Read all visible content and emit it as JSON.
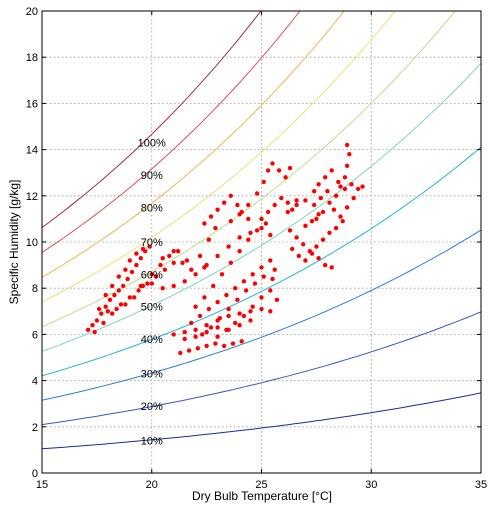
{
  "chart_data": {
    "type": "scatter",
    "xlabel": "Dry Bulb Temperature [°C]",
    "ylabel": "Specific Humidity [g/kg]",
    "xlim": [
      15,
      35
    ],
    "ylim": [
      0,
      20
    ],
    "x_ticks": [
      15,
      20,
      25,
      30,
      35
    ],
    "y_ticks": [
      0,
      2,
      4,
      6,
      8,
      10,
      12,
      14,
      16,
      18,
      20
    ],
    "grid": true,
    "pressure_kpa": 101.325,
    "rh_curves": [
      {
        "rh": 10,
        "label": "10%",
        "label_at": [
          20,
          1.4
        ],
        "color": "#1c2aa0"
      },
      {
        "rh": 20,
        "label": "20%",
        "label_at": [
          20,
          2.9
        ],
        "color": "#3f55c7"
      },
      {
        "rh": 30,
        "label": "30%",
        "label_at": [
          20,
          4.3
        ],
        "color": "#2f7bdc"
      },
      {
        "rh": 40,
        "label": "40%",
        "label_at": [
          20,
          5.8
        ],
        "color": "#22b5d8"
      },
      {
        "rh": 50,
        "label": "50%",
        "label_at": [
          20,
          7.2
        ],
        "color": "#7fd6c2"
      },
      {
        "rh": 60,
        "label": "60%",
        "label_at": [
          20,
          8.6
        ],
        "color": "#b9e08a"
      },
      {
        "rh": 70,
        "label": "70%",
        "label_at": [
          20,
          10.0
        ],
        "color": "#f0e070"
      },
      {
        "rh": 80,
        "label": "80%",
        "label_at": [
          20,
          11.5
        ],
        "color": "#f2b84a"
      },
      {
        "rh": 90,
        "label": "90%",
        "label_at": [
          20,
          12.9
        ],
        "color": "#d9534f"
      },
      {
        "rh": 100,
        "label": "100%",
        "label_at": [
          20,
          14.3
        ],
        "color": "#a0303a"
      }
    ],
    "series": [
      {
        "color": "#ff0000",
        "points": [
          [
            17.1,
            6.2
          ],
          [
            17.3,
            6.4
          ],
          [
            17.5,
            6.6
          ],
          [
            17.7,
            6.9
          ],
          [
            17.9,
            7.2
          ],
          [
            18.1,
            7.5
          ],
          [
            18.3,
            7.7
          ],
          [
            18.5,
            7.9
          ],
          [
            18.7,
            8.1
          ],
          [
            18.9,
            8.4
          ],
          [
            19.1,
            8.7
          ],
          [
            19.3,
            9.0
          ],
          [
            19.5,
            9.3
          ],
          [
            19.7,
            9.6
          ],
          [
            19.9,
            9.8
          ],
          [
            17.4,
            6.1
          ],
          [
            17.8,
            6.5
          ],
          [
            18.2,
            6.9
          ],
          [
            18.6,
            7.3
          ],
          [
            19.0,
            7.6
          ],
          [
            19.4,
            7.9
          ],
          [
            19.8,
            8.2
          ],
          [
            20.2,
            8.5
          ],
          [
            20.6,
            8.8
          ],
          [
            21.0,
            9.1
          ],
          [
            18.0,
            7.0
          ],
          [
            18.4,
            7.1
          ],
          [
            18.8,
            7.3
          ],
          [
            19.2,
            7.6
          ],
          [
            19.6,
            8.1
          ],
          [
            20.0,
            8.6
          ],
          [
            20.4,
            9.0
          ],
          [
            20.8,
            9.4
          ],
          [
            21.2,
            9.6
          ],
          [
            21.6,
            9.2
          ],
          [
            19.5,
            8.1
          ],
          [
            20.0,
            8.2
          ],
          [
            20.5,
            8.0
          ],
          [
            21.0,
            8.1
          ],
          [
            21.5,
            8.3
          ],
          [
            22.0,
            8.6
          ],
          [
            22.4,
            8.9
          ],
          [
            20.5,
            9.3
          ],
          [
            21.0,
            9.6
          ],
          [
            21.4,
            9.1
          ],
          [
            21.8,
            8.8
          ],
          [
            22.2,
            9.4
          ],
          [
            22.6,
            10.1
          ],
          [
            22.9,
            10.6
          ],
          [
            22.4,
            10.8
          ],
          [
            22.7,
            11.1
          ],
          [
            23.0,
            11.4
          ],
          [
            23.3,
            11.7
          ],
          [
            23.6,
            12.0
          ],
          [
            23.9,
            11.6
          ],
          [
            24.1,
            11.3
          ],
          [
            24.4,
            11.0
          ],
          [
            21.3,
            5.2
          ],
          [
            21.7,
            5.3
          ],
          [
            22.1,
            5.4
          ],
          [
            22.5,
            5.5
          ],
          [
            22.9,
            5.6
          ],
          [
            23.3,
            5.5
          ],
          [
            23.7,
            5.6
          ],
          [
            24.1,
            5.7
          ],
          [
            21.0,
            6.0
          ],
          [
            21.5,
            6.1
          ],
          [
            22.0,
            6.2
          ],
          [
            22.5,
            6.4
          ],
          [
            23.0,
            6.6
          ],
          [
            23.5,
            6.8
          ],
          [
            24.0,
            6.9
          ],
          [
            24.5,
            7.0
          ],
          [
            25.0,
            7.1
          ],
          [
            25.4,
            7.0
          ],
          [
            21.8,
            6.5
          ],
          [
            22.2,
            6.8
          ],
          [
            22.6,
            7.1
          ],
          [
            23.0,
            7.4
          ],
          [
            23.4,
            7.7
          ],
          [
            23.8,
            8.0
          ],
          [
            24.2,
            8.3
          ],
          [
            24.6,
            8.6
          ],
          [
            25.0,
            8.9
          ],
          [
            25.4,
            9.2
          ],
          [
            25.6,
            8.8
          ],
          [
            22.0,
            7.2
          ],
          [
            22.4,
            7.6
          ],
          [
            22.8,
            8.1
          ],
          [
            23.2,
            8.6
          ],
          [
            23.6,
            9.1
          ],
          [
            24.0,
            9.6
          ],
          [
            24.4,
            10.1
          ],
          [
            24.8,
            10.5
          ],
          [
            25.2,
            10.8
          ],
          [
            22.3,
            6.0
          ],
          [
            22.7,
            6.3
          ],
          [
            23.1,
            6.7
          ],
          [
            23.5,
            7.1
          ],
          [
            23.9,
            7.5
          ],
          [
            24.3,
            7.9
          ],
          [
            24.7,
            8.2
          ],
          [
            25.1,
            8.5
          ],
          [
            25.5,
            8.4
          ],
          [
            23.0,
            5.9
          ],
          [
            23.4,
            6.2
          ],
          [
            23.8,
            6.5
          ],
          [
            24.2,
            6.8
          ],
          [
            24.6,
            7.2
          ],
          [
            25.0,
            7.6
          ],
          [
            25.4,
            7.9
          ],
          [
            25.7,
            7.5
          ],
          [
            22.5,
            9.0
          ],
          [
            23.0,
            9.4
          ],
          [
            23.5,
            9.8
          ],
          [
            24.0,
            10.2
          ],
          [
            24.5,
            10.4
          ],
          [
            25.0,
            10.6
          ],
          [
            25.4,
            10.3
          ],
          [
            23.6,
            10.9
          ],
          [
            24.0,
            11.2
          ],
          [
            24.4,
            11.6
          ],
          [
            24.8,
            12.1
          ],
          [
            25.1,
            12.6
          ],
          [
            25.3,
            13.1
          ],
          [
            25.5,
            13.4
          ],
          [
            25.8,
            13.1
          ],
          [
            26.1,
            12.8
          ],
          [
            26.3,
            13.2
          ],
          [
            25.0,
            11.0
          ],
          [
            25.3,
            11.3
          ],
          [
            25.6,
            11.6
          ],
          [
            25.9,
            11.9
          ],
          [
            26.2,
            11.7
          ],
          [
            26.4,
            11.4
          ],
          [
            26.6,
            11.8
          ],
          [
            26.2,
            11.3
          ],
          [
            26.6,
            11.6
          ],
          [
            27.0,
            11.8
          ],
          [
            27.4,
            11.6
          ],
          [
            27.6,
            11.2
          ],
          [
            27.3,
            10.9
          ],
          [
            27.0,
            10.7
          ],
          [
            26.3,
            10.5
          ],
          [
            26.6,
            10.2
          ],
          [
            26.9,
            9.9
          ],
          [
            27.2,
            9.6
          ],
          [
            27.5,
            9.8
          ],
          [
            27.8,
            10.1
          ],
          [
            28.1,
            10.4
          ],
          [
            28.4,
            10.6
          ],
          [
            28.7,
            10.9
          ],
          [
            26.4,
            9.7
          ],
          [
            26.7,
            9.4
          ],
          [
            27.0,
            9.2
          ],
          [
            27.3,
            9.5
          ],
          [
            27.6,
            9.3
          ],
          [
            27.9,
            9.0
          ],
          [
            28.2,
            8.9
          ],
          [
            27.5,
            11.0
          ],
          [
            27.8,
            11.3
          ],
          [
            28.1,
            11.7
          ],
          [
            28.4,
            12.0
          ],
          [
            28.6,
            12.4
          ],
          [
            28.8,
            12.8
          ],
          [
            28.9,
            13.3
          ],
          [
            29.0,
            13.8
          ],
          [
            28.9,
            14.2
          ],
          [
            27.6,
            12.5
          ],
          [
            27.9,
            12.8
          ],
          [
            28.2,
            13.1
          ],
          [
            28.5,
            12.6
          ],
          [
            28.8,
            12.3
          ],
          [
            29.1,
            12.5
          ],
          [
            29.4,
            12.3
          ],
          [
            29.6,
            12.4
          ],
          [
            27.4,
            12.2
          ],
          [
            27.7,
            11.9
          ],
          [
            28.0,
            12.2
          ],
          [
            28.3,
            11.4
          ],
          [
            28.6,
            11.1
          ],
          [
            28.9,
            11.5
          ],
          [
            29.2,
            11.9
          ],
          [
            19.0,
            9.2
          ],
          [
            19.3,
            9.5
          ],
          [
            19.6,
            9.7
          ],
          [
            18.8,
            8.8
          ],
          [
            18.5,
            8.5
          ],
          [
            18.2,
            8.1
          ],
          [
            17.9,
            7.7
          ],
          [
            17.6,
            7.1
          ],
          [
            21.5,
            5.8
          ],
          [
            22.0,
            5.9
          ],
          [
            22.5,
            6.1
          ],
          [
            23.0,
            6.3
          ],
          [
            23.5,
            6.2
          ],
          [
            24.0,
            6.4
          ],
          [
            24.5,
            6.6
          ]
        ]
      }
    ]
  }
}
